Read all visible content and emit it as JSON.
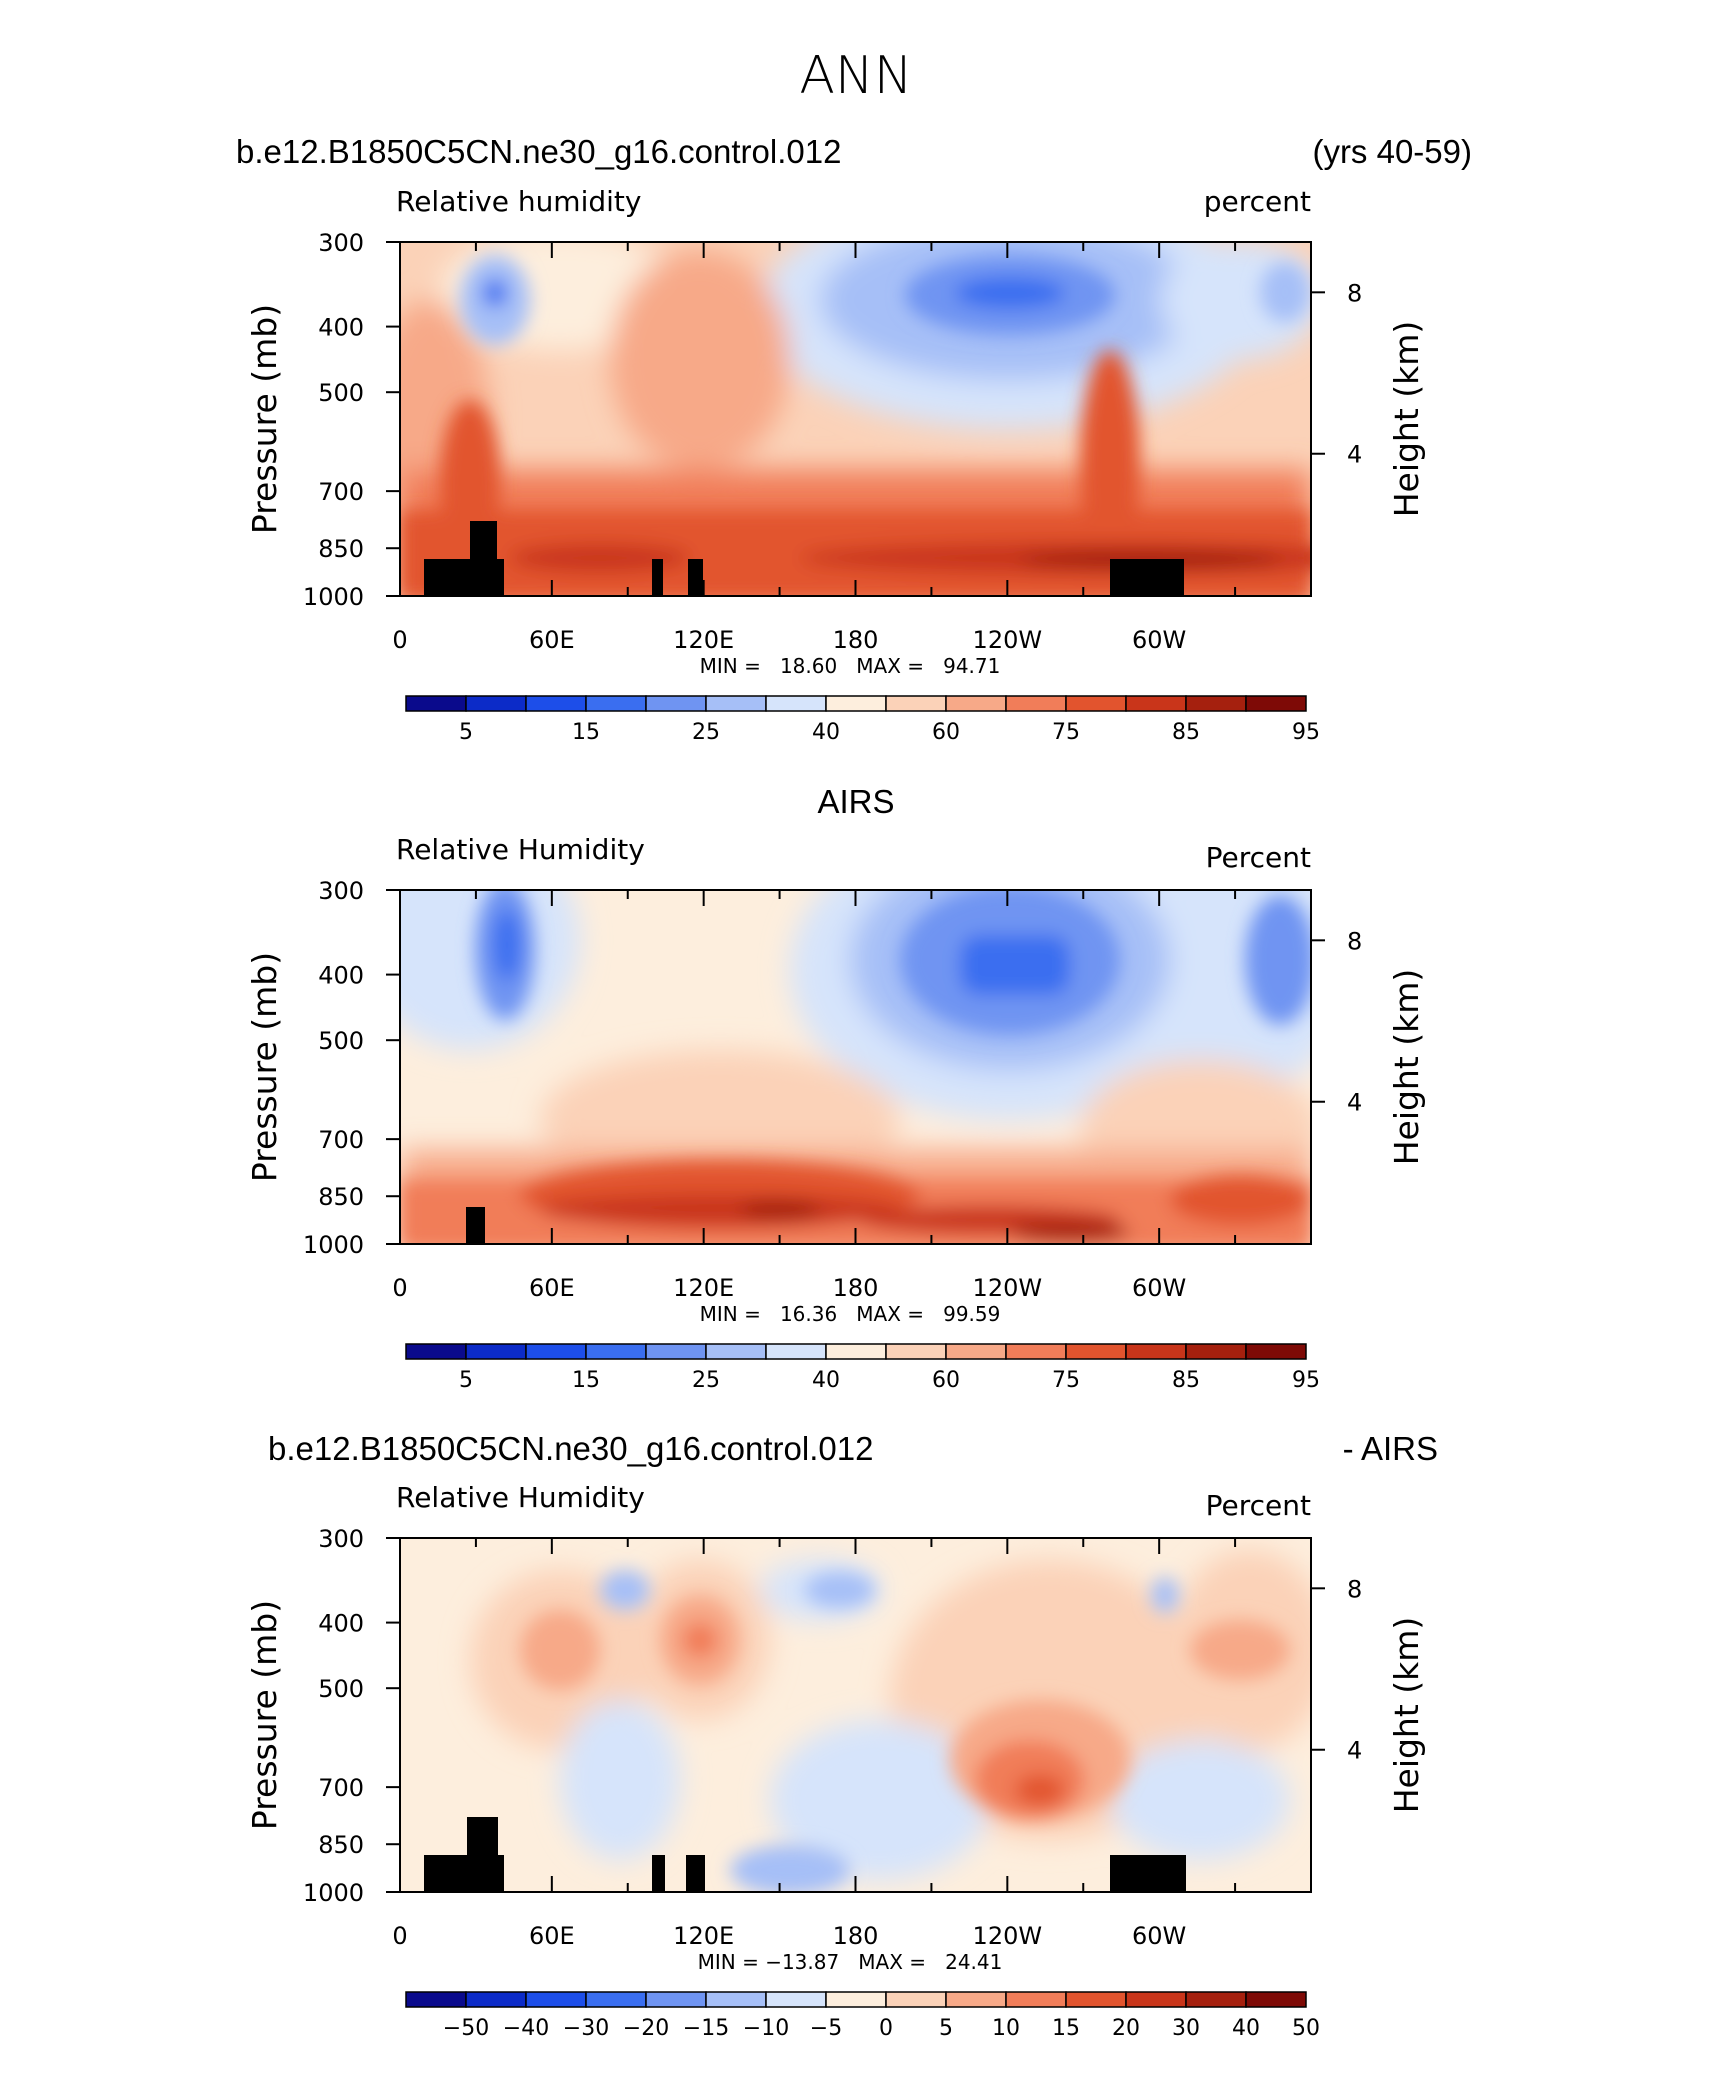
{
  "header": {
    "season": "ANN",
    "case_title": "b.e12.B1850C5CN.ne30_g16.control.012",
    "years": "(yrs 40-59)"
  },
  "chart_data": [
    {
      "type": "heatmap",
      "title": "",
      "variable": "Relative humidity",
      "units": "percent",
      "ylabel": "Pressure (mb)",
      "ylabel_right": "Height (km)",
      "y_ticks": [
        "300",
        "400",
        "500",
        "700",
        "850",
        "1000"
      ],
      "y_right_ticks": [
        "8",
        "4"
      ],
      "x_ticks": [
        "0",
        "60E",
        "120E",
        "180",
        "120W",
        "60W"
      ],
      "stats": "MIN =   18.60   MAX =   94.71",
      "levels": [
        "5",
        "15",
        "25",
        "40",
        "60",
        "75",
        "85",
        "95"
      ],
      "palette": [
        "#0a0a8c",
        "#0c2bc8",
        "#1d4ee9",
        "#3a6ef0",
        "#6f94f2",
        "#a6bff7",
        "#d6e4fb",
        "#fdeedd",
        "#fbd2b8",
        "#f7a988",
        "#f17d59",
        "#e2542e",
        "#c9351a",
        "#a5200e",
        "#7e0a06"
      ]
    },
    {
      "type": "heatmap",
      "title": "AIRS",
      "variable": "Relative Humidity",
      "units": "Percent",
      "ylabel": "Pressure (mb)",
      "ylabel_right": "Height (km)",
      "y_ticks": [
        "300",
        "400",
        "500",
        "700",
        "850",
        "1000"
      ],
      "y_right_ticks": [
        "8",
        "4"
      ],
      "x_ticks": [
        "0",
        "60E",
        "120E",
        "180",
        "120W",
        "60W"
      ],
      "stats": "MIN =   16.36   MAX =   99.59",
      "levels": [
        "5",
        "15",
        "25",
        "40",
        "60",
        "75",
        "85",
        "95"
      ],
      "palette": [
        "#0a0a8c",
        "#0c2bc8",
        "#1d4ee9",
        "#3a6ef0",
        "#6f94f2",
        "#a6bff7",
        "#d6e4fb",
        "#fdeedd",
        "#fbd2b8",
        "#f7a988",
        "#f17d59",
        "#e2542e",
        "#c9351a",
        "#a5200e",
        "#7e0a06"
      ]
    },
    {
      "type": "heatmap",
      "title": "b.e12.B1850C5CN.ne30_g16.control.012",
      "title_right": "- AIRS",
      "variable": "Relative Humidity",
      "units": "Percent",
      "ylabel": "Pressure (mb)",
      "ylabel_right": "Height (km)",
      "y_ticks": [
        "300",
        "400",
        "500",
        "700",
        "850",
        "1000"
      ],
      "y_right_ticks": [
        "8",
        "4"
      ],
      "x_ticks": [
        "0",
        "60E",
        "120E",
        "180",
        "120W",
        "60W"
      ],
      "stats": "MIN = −13.87   MAX =   24.41",
      "levels": [
        "−50",
        "−40",
        "−30",
        "−20",
        "−15",
        "−10",
        "−5",
        "0",
        "5",
        "10",
        "15",
        "20",
        "30",
        "40",
        "50"
      ],
      "palette": [
        "#0a0a8c",
        "#0c2bc8",
        "#1d4ee9",
        "#3a6ef0",
        "#6f94f2",
        "#a6bff7",
        "#d6e4fb",
        "#fdeedd",
        "#fbd2b8",
        "#f7a988",
        "#f17d59",
        "#e2542e",
        "#c9351a",
        "#a5200e",
        "#7e0a06"
      ]
    }
  ]
}
